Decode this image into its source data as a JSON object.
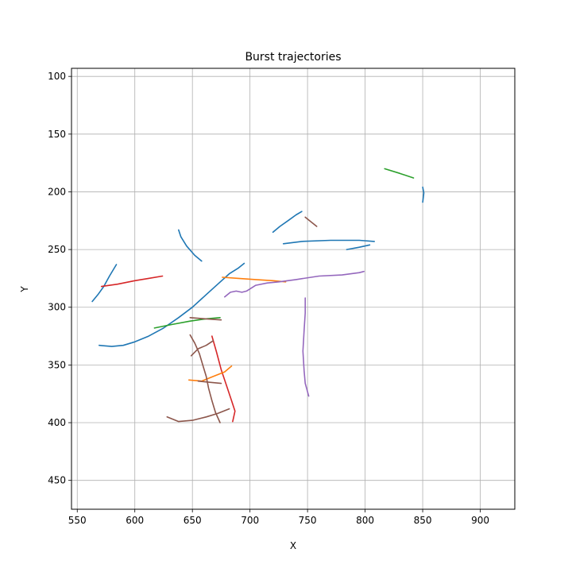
{
  "chart_data": {
    "type": "line",
    "title": "Burst trajectories",
    "xlabel": "X",
    "ylabel": "Y",
    "xlim": [
      545,
      930
    ],
    "ylim": [
      475,
      93
    ],
    "y_inverted": true,
    "grid": true,
    "xticks": [
      550,
      600,
      650,
      700,
      750,
      800,
      850,
      900
    ],
    "yticks": [
      100,
      150,
      200,
      250,
      300,
      350,
      400,
      450
    ],
    "series": [
      {
        "color": "#1f77b4",
        "points": [
          [
            569,
            333
          ],
          [
            580,
            334
          ],
          [
            590,
            333
          ],
          [
            600,
            330
          ],
          [
            612,
            325
          ],
          [
            625,
            318
          ],
          [
            638,
            309
          ],
          [
            650,
            300
          ],
          [
            662,
            289
          ],
          [
            672,
            280
          ],
          [
            682,
            271
          ],
          [
            690,
            266
          ],
          [
            695,
            262
          ]
        ]
      },
      {
        "color": "#1f77b4",
        "points": [
          [
            563,
            295
          ],
          [
            568,
            289
          ],
          [
            573,
            282
          ],
          [
            578,
            273
          ],
          [
            584,
            263
          ]
        ]
      },
      {
        "color": "#1f77b4",
        "points": [
          [
            638,
            233
          ],
          [
            640,
            239
          ],
          [
            645,
            247
          ],
          [
            652,
            255
          ],
          [
            658,
            260
          ]
        ]
      },
      {
        "color": "#1f77b4",
        "points": [
          [
            720,
            235
          ],
          [
            726,
            230
          ],
          [
            733,
            225
          ],
          [
            740,
            220
          ],
          [
            745,
            217
          ]
        ]
      },
      {
        "color": "#1f77b4",
        "points": [
          [
            729,
            245
          ],
          [
            745,
            243
          ],
          [
            770,
            242
          ],
          [
            795,
            242
          ],
          [
            808,
            243
          ]
        ]
      },
      {
        "color": "#1f77b4",
        "points": [
          [
            784,
            250
          ],
          [
            795,
            248
          ],
          [
            804,
            246
          ]
        ]
      },
      {
        "color": "#1f77b4",
        "points": [
          [
            850,
            196
          ],
          [
            851,
            201
          ],
          [
            850,
            209
          ]
        ]
      },
      {
        "color": "#d62728",
        "points": [
          [
            571,
            282
          ],
          [
            585,
            280
          ],
          [
            600,
            277
          ],
          [
            612,
            275
          ],
          [
            624,
            273
          ]
        ]
      },
      {
        "color": "#d62728",
        "points": [
          [
            667,
            325
          ],
          [
            671,
            339
          ],
          [
            675,
            354
          ],
          [
            680,
            369
          ],
          [
            684,
            381
          ],
          [
            687,
            390
          ],
          [
            685,
            399
          ]
        ]
      },
      {
        "color": "#2ca02c",
        "points": [
          [
            617,
            318
          ],
          [
            632,
            315
          ],
          [
            648,
            312
          ],
          [
            662,
            310
          ],
          [
            674,
            309
          ]
        ]
      },
      {
        "color": "#2ca02c",
        "points": [
          [
            817,
            180
          ],
          [
            830,
            184
          ],
          [
            842,
            188
          ]
        ]
      },
      {
        "color": "#ff7f0e",
        "points": [
          [
            676,
            274
          ],
          [
            690,
            275
          ],
          [
            705,
            276
          ],
          [
            720,
            277
          ],
          [
            731,
            278
          ]
        ]
      },
      {
        "color": "#ff7f0e",
        "points": [
          [
            647,
            363
          ],
          [
            658,
            364
          ],
          [
            668,
            360
          ],
          [
            678,
            356
          ],
          [
            684,
            351
          ]
        ]
      },
      {
        "color": "#9467bd",
        "points": [
          [
            678,
            291
          ],
          [
            683,
            287
          ],
          [
            688,
            286
          ],
          [
            693,
            287
          ],
          [
            697,
            286
          ],
          [
            705,
            281
          ],
          [
            715,
            279
          ],
          [
            725,
            278
          ],
          [
            740,
            276
          ],
          [
            760,
            273
          ],
          [
            780,
            272
          ],
          [
            795,
            270
          ],
          [
            799,
            269
          ]
        ]
      },
      {
        "color": "#9467bd",
        "points": [
          [
            748,
            292
          ],
          [
            748,
            305
          ],
          [
            747,
            320
          ],
          [
            746,
            338
          ],
          [
            747,
            355
          ],
          [
            748,
            366
          ],
          [
            751,
            377
          ]
        ]
      },
      {
        "color": "#8c564b",
        "points": [
          [
            748,
            222
          ],
          [
            753,
            226
          ],
          [
            758,
            230
          ]
        ]
      },
      {
        "color": "#8c564b",
        "points": [
          [
            648,
            309
          ],
          [
            661,
            310
          ],
          [
            675,
            311
          ]
        ]
      },
      {
        "color": "#8c564b",
        "points": [
          [
            648,
            324
          ],
          [
            652,
            331
          ],
          [
            656,
            340
          ],
          [
            659,
            350
          ],
          [
            662,
            360
          ],
          [
            664,
            370
          ],
          [
            667,
            381
          ],
          [
            670,
            391
          ],
          [
            674,
            400
          ]
        ]
      },
      {
        "color": "#8c564b",
        "points": [
          [
            649,
            342
          ],
          [
            655,
            336
          ],
          [
            662,
            333
          ],
          [
            668,
            329
          ]
        ]
      },
      {
        "color": "#8c564b",
        "points": [
          [
            655,
            364
          ],
          [
            665,
            365
          ],
          [
            675,
            366
          ]
        ]
      },
      {
        "color": "#8c564b",
        "points": [
          [
            628,
            395
          ],
          [
            638,
            399
          ],
          [
            650,
            398
          ],
          [
            662,
            395
          ],
          [
            672,
            392
          ],
          [
            682,
            388
          ]
        ]
      }
    ]
  }
}
